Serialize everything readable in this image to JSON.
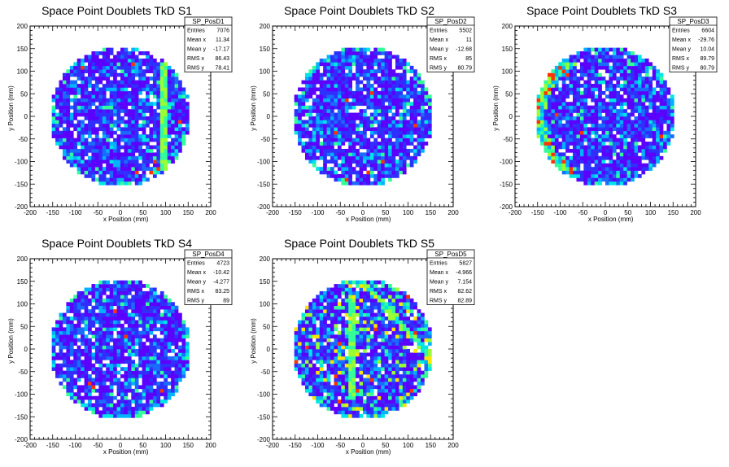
{
  "chart_data": [
    {
      "type": "heatmap",
      "title": "Space Point Doublets TkD S1",
      "xlabel": "x Position (mm)",
      "ylabel": "y Position (mm)",
      "xlim": [
        -200,
        200
      ],
      "ylim": [
        -200,
        200
      ],
      "xticks": [
        -200,
        -150,
        -100,
        -50,
        0,
        50,
        100,
        150,
        200
      ],
      "yticks": [
        -200,
        -150,
        -100,
        -50,
        0,
        50,
        100,
        150,
        200
      ],
      "stats": {
        "name": "SP_PosD1",
        "rows": [
          {
            "label": "Entries",
            "value": "7076"
          },
          {
            "label": "Mean x",
            "value": "11.34"
          },
          {
            "label": "Mean y",
            "value": "-17.17"
          },
          {
            "label": "RMS x",
            "value": "86.43"
          },
          {
            "label": "RMS y",
            "value": "78.41"
          }
        ]
      },
      "disk_radius": 155,
      "features": [
        {
          "kind": "vline",
          "x": 95,
          "y0": -120,
          "y1": 120
        }
      ]
    },
    {
      "type": "heatmap",
      "title": "Space Point Doublets TkD S2",
      "xlabel": "x Position (mm)",
      "ylabel": "y Position (mm)",
      "xlim": [
        -200,
        200
      ],
      "ylim": [
        -200,
        200
      ],
      "xticks": [
        -200,
        -150,
        -100,
        -50,
        0,
        50,
        100,
        150,
        200
      ],
      "yticks": [
        -200,
        -150,
        -100,
        -50,
        0,
        50,
        100,
        150,
        200
      ],
      "stats": {
        "name": "SP_PosD2",
        "rows": [
          {
            "label": "Entries",
            "value": "5502"
          },
          {
            "label": "Mean x",
            "value": "11"
          },
          {
            "label": "Mean y",
            "value": "-12.68"
          },
          {
            "label": "RMS x",
            "value": "85"
          },
          {
            "label": "RMS y",
            "value": "80.79"
          }
        ]
      },
      "disk_radius": 155,
      "features": []
    },
    {
      "type": "heatmap",
      "title": "Space Point Doublets TkD S3",
      "xlabel": "x Position (mm)",
      "ylabel": "y Position (mm)",
      "xlim": [
        -200,
        200
      ],
      "ylim": [
        -200,
        200
      ],
      "xticks": [
        -200,
        -150,
        -100,
        -50,
        0,
        50,
        100,
        150,
        200
      ],
      "yticks": [
        -200,
        -150,
        -100,
        -50,
        0,
        50,
        100,
        150,
        200
      ],
      "stats": {
        "name": "SP_PosD3",
        "rows": [
          {
            "label": "Entries",
            "value": "6604"
          },
          {
            "label": "Mean x",
            "value": "-29.76"
          },
          {
            "label": "Mean y",
            "value": "10.04"
          },
          {
            "label": "RMS x",
            "value": "89.79"
          },
          {
            "label": "RMS y",
            "value": "80.79"
          }
        ]
      },
      "disk_radius": 155,
      "features": [
        {
          "kind": "leftarc"
        }
      ]
    },
    {
      "type": "heatmap",
      "title": "Space Point Doublets TkD S4",
      "xlabel": "x Position (mm)",
      "ylabel": "y Position (mm)",
      "xlim": [
        -200,
        200
      ],
      "ylim": [
        -200,
        200
      ],
      "xticks": [
        -200,
        -150,
        -100,
        -50,
        0,
        50,
        100,
        150,
        200
      ],
      "yticks": [
        -200,
        -150,
        -100,
        -50,
        0,
        50,
        100,
        150,
        200
      ],
      "stats": {
        "name": "SP_PosD4",
        "rows": [
          {
            "label": "Entries",
            "value": "4723"
          },
          {
            "label": "Mean x",
            "value": "-10.42"
          },
          {
            "label": "Mean y",
            "value": "-4.277"
          },
          {
            "label": "RMS x",
            "value": "83.25"
          },
          {
            "label": "RMS y",
            "value": "89"
          }
        ]
      },
      "disk_radius": 155,
      "features": []
    },
    {
      "type": "heatmap",
      "title": "Space Point Doublets TkD S5",
      "xlabel": "x Position (mm)",
      "ylabel": "y Position (mm)",
      "xlim": [
        -200,
        200
      ],
      "ylim": [
        -200,
        200
      ],
      "xticks": [
        -200,
        -150,
        -100,
        -50,
        0,
        50,
        100,
        150,
        200
      ],
      "yticks": [
        -200,
        -150,
        -100,
        -50,
        0,
        50,
        100,
        150,
        200
      ],
      "stats": {
        "name": "SP_PosD5",
        "rows": [
          {
            "label": "Entries",
            "value": "5827"
          },
          {
            "label": "Mean x",
            "value": "-4.966"
          },
          {
            "label": "Mean y",
            "value": "7.154"
          },
          {
            "label": "RMS x",
            "value": "82.62"
          },
          {
            "label": "RMS y",
            "value": "82.89"
          }
        ]
      },
      "disk_radius": 155,
      "features": [
        {
          "kind": "vline",
          "x": -25,
          "y0": -110,
          "y1": 110
        },
        {
          "kind": "diag"
        }
      ]
    }
  ],
  "palette": [
    "#ffffff",
    "#5b00ff",
    "#2f2fff",
    "#1a6bff",
    "#00b3ff",
    "#00e5e5",
    "#33ff99",
    "#99ff33",
    "#ffe500",
    "#ff3300"
  ]
}
